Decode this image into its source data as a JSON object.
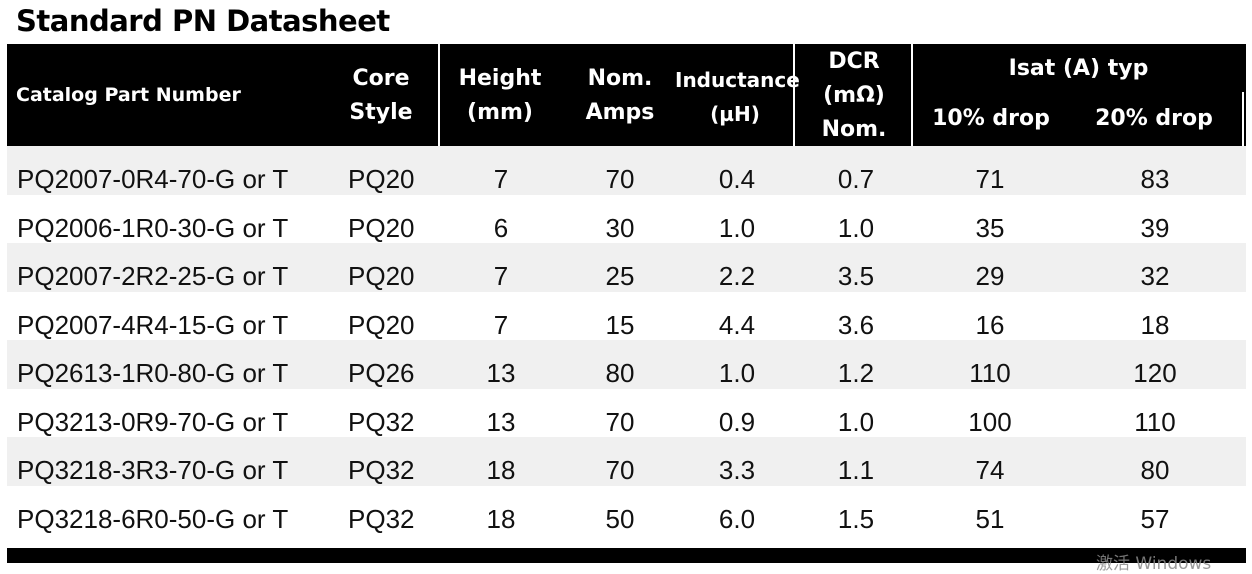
{
  "title": "Standard PN Datasheet",
  "headers": {
    "part": "Catalog Part Number",
    "core_l1": "Core",
    "core_l2": "Style",
    "height_l1": "Height",
    "height_l2": "(mm)",
    "amps_l1": "Nom.",
    "amps_l2": "Amps",
    "ind_l1": "Inductance",
    "ind_l2": "(µH)",
    "dcr_l1": "DCR",
    "dcr_l2": "(mΩ)",
    "dcr_l3": "Nom.",
    "isat": "Isat (A) typ",
    "drop10": "10% drop",
    "drop20": "20% drop"
  },
  "rows": [
    {
      "part": "PQ2007-0R4-70-G or T",
      "core": "PQ20",
      "height": "7",
      "amps": "70",
      "ind": "0.4",
      "dcr": "0.7",
      "d10": "71",
      "d20": "83"
    },
    {
      "part": "PQ2006-1R0-30-G or T",
      "core": "PQ20",
      "height": "6",
      "amps": "30",
      "ind": "1.0",
      "dcr": "1.0",
      "d10": "35",
      "d20": "39"
    },
    {
      "part": "PQ2007-2R2-25-G or T",
      "core": "PQ20",
      "height": "7",
      "amps": "25",
      "ind": "2.2",
      "dcr": "3.5",
      "d10": "29",
      "d20": "32"
    },
    {
      "part": "PQ2007-4R4-15-G or T",
      "core": "PQ20",
      "height": "7",
      "amps": "15",
      "ind": "4.4",
      "dcr": "3.6",
      "d10": "16",
      "d20": "18"
    },
    {
      "part": "PQ2613-1R0-80-G or T",
      "core": "PQ26",
      "height": "13",
      "amps": "80",
      "ind": "1.0",
      "dcr": "1.2",
      "d10": "110",
      "d20": "120"
    },
    {
      "part": "PQ3213-0R9-70-G or T",
      "core": "PQ32",
      "height": "13",
      "amps": "70",
      "ind": "0.9",
      "dcr": "1.0",
      "d10": "100",
      "d20": "110"
    },
    {
      "part": "PQ3218-3R3-70-G or T",
      "core": "PQ32",
      "height": "18",
      "amps": "70",
      "ind": "3.3",
      "dcr": "1.1",
      "d10": "74",
      "d20": "80"
    },
    {
      "part": "PQ3218-6R0-50-G or T",
      "core": "PQ32",
      "height": "18",
      "amps": "50",
      "ind": "6.0",
      "dcr": "1.5",
      "d10": "51",
      "d20": "57"
    }
  ],
  "watermark": "激活 Windows"
}
